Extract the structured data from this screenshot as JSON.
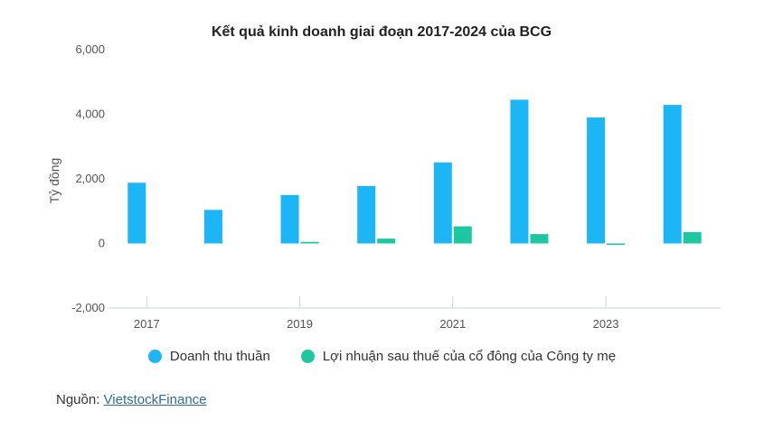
{
  "chart_data": {
    "type": "bar",
    "title": "Kết quả kinh doanh giai đoạn 2017-2024 của BCG",
    "ylabel": "Tỷ đồng",
    "xlabel": "",
    "categories": [
      "2017",
      "2018",
      "2019",
      "2020",
      "2021",
      "2022",
      "2023",
      "2024"
    ],
    "x_tick_labels": [
      "2017",
      "2019",
      "2021",
      "2023"
    ],
    "y_ticks": [
      "6,000",
      "4,000",
      "2,000",
      "0",
      "-2,000"
    ],
    "ylim": [
      -2000,
      6000
    ],
    "grid": false,
    "legend_position": "bottom",
    "series": [
      {
        "name": "Doanh thu thuần",
        "color": "#1cb5f5",
        "values": [
          1880,
          1040,
          1500,
          1780,
          2510,
          4450,
          3900,
          4290
        ]
      },
      {
        "name": "Lợi nhuận sau thuế của cổ đông của Công ty mẹ",
        "color": "#1dc7a0",
        "values": [
          0,
          0,
          50,
          150,
          530,
          290,
          -30,
          350
        ]
      }
    ]
  },
  "source": {
    "label": "Nguồn: ",
    "link": "VietstockFinance"
  }
}
